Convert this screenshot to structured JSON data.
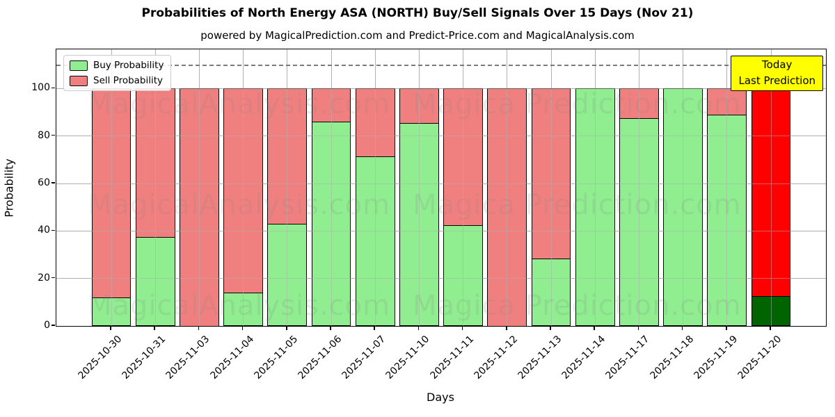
{
  "title": "Probabilities of North Energy ASA (NORTH) Buy/Sell Signals Over 15 Days (Nov 21)",
  "subtitle": "powered by MagicalPrediction.com and Predict-Price.com and MagicalAnalysis.com",
  "legend": {
    "items": [
      {
        "label": "Buy Probability",
        "color": "#90ee90"
      },
      {
        "label": "Sell Probability",
        "color": "#f08080"
      }
    ]
  },
  "annotation": {
    "line1": "Today",
    "line2": "Last Prediction",
    "bg_color": "#ffff00"
  },
  "watermarks": {
    "left": "MagicalAnalysis.com",
    "right": "Magica Prediction.com"
  },
  "chart_data": {
    "type": "bar",
    "stacked": true,
    "title": "Probabilities of North Energy ASA (NORTH) Buy/Sell Signals Over 15 Days (Nov 21)",
    "xlabel": "Days",
    "ylabel": "Probability",
    "categories": [
      "2025-10-30",
      "2025-10-31",
      "2025-11-03",
      "2025-11-04",
      "2025-11-05",
      "2025-11-06",
      "2025-11-07",
      "2025-11-10",
      "2025-11-11",
      "2025-11-12",
      "2025-11-13",
      "2025-11-14",
      "2025-11-17",
      "2025-11-18",
      "2025-11-19",
      "2025-11-20"
    ],
    "series": [
      {
        "name": "Buy Probability",
        "color": "#90ee90",
        "values": [
          12,
          37.5,
          0,
          14,
          43,
          86,
          71.5,
          85.5,
          42.5,
          0,
          28.5,
          100,
          87.5,
          100,
          89,
          12.5
        ]
      },
      {
        "name": "Sell Probability",
        "color": "#f08080",
        "values": [
          88,
          62.5,
          100,
          86,
          57,
          14,
          28.5,
          14.5,
          57.5,
          100,
          71.5,
          0,
          12.5,
          0,
          11,
          87.5
        ]
      }
    ],
    "today_index": 15,
    "today_colors": {
      "buy": "#006400",
      "sell": "#ff0000"
    },
    "yticks": [
      0,
      20,
      40,
      60,
      80,
      100
    ],
    "ylim": [
      0,
      116.5
    ],
    "dashed_line_y": 110,
    "grid": true,
    "grid_color": "#b0b0b0",
    "legend_position": "upper-left"
  }
}
